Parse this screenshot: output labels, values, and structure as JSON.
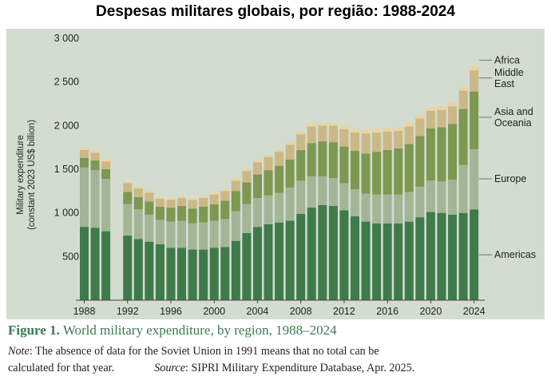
{
  "page_title": "Despesas militares globais, por região: 1988-2024",
  "caption": {
    "figure_label": "Figure 1.",
    "figure_title": "World military expenditure, by region, 1988–2024"
  },
  "note": {
    "label": "Note",
    "text_line1": ": The absence of data for the Soviet Union in 1991 means that no total can be",
    "text_line2": "calculated for that year.",
    "source_label": "Source",
    "source_text": ": SIPRI Military Expenditure Database, Apr. 2025."
  },
  "colors": {
    "panel_bg": "#d3dccf",
    "Americas": "#3f7a4b",
    "Europe": "#a3b596",
    "Asia and Oceania": "#7d9850",
    "Middle East": "#cbb886",
    "Africa": "#ecd39a"
  },
  "chart_data": {
    "type": "stacked_bar",
    "title": "",
    "ylabel_line1": "Military expenditure",
    "ylabel_line2": "(constant 2023 US$ billion)",
    "xlabel": "",
    "ylim": [
      0,
      3000
    ],
    "yticks": [
      500,
      1000,
      1500,
      2000,
      2500,
      3000
    ],
    "ytick_labels": [
      "500",
      "1 000",
      "1 500",
      "2 000",
      "2 500",
      "3 000"
    ],
    "xtick_labels": [
      "1988",
      "1992",
      "1996",
      "2000",
      "2004",
      "2008",
      "2012",
      "2016",
      "2020",
      "2024"
    ],
    "grid": false,
    "legend_position": "right",
    "categories": [
      1988,
      1989,
      1990,
      1991,
      1992,
      1993,
      1994,
      1995,
      1996,
      1997,
      1998,
      1999,
      2000,
      2001,
      2002,
      2003,
      2004,
      2005,
      2006,
      2007,
      2008,
      2009,
      2010,
      2011,
      2012,
      2013,
      2014,
      2015,
      2016,
      2017,
      2018,
      2019,
      2020,
      2021,
      2022,
      2023,
      2024
    ],
    "series": [
      {
        "name": "Americas",
        "values": [
          840,
          830,
          790,
          null,
          740,
          700,
          670,
          640,
          600,
          600,
          580,
          580,
          600,
          610,
          680,
          770,
          840,
          870,
          890,
          910,
          990,
          1060,
          1090,
          1080,
          1030,
          960,
          900,
          880,
          880,
          880,
          900,
          950,
          1010,
          1000,
          980,
          1000,
          1040
        ]
      },
      {
        "name": "Europe",
        "values": [
          680,
          660,
          600,
          null,
          360,
          340,
          310,
          280,
          300,
          310,
          300,
          310,
          310,
          320,
          340,
          330,
          330,
          330,
          340,
          380,
          380,
          360,
          330,
          320,
          310,
          310,
          320,
          330,
          330,
          330,
          340,
          350,
          360,
          360,
          400,
          550,
          690
        ]
      },
      {
        "name": "Asia and Oceania",
        "values": [
          110,
          110,
          110,
          null,
          140,
          140,
          150,
          150,
          160,
          170,
          170,
          180,
          190,
          210,
          230,
          250,
          270,
          290,
          310,
          320,
          350,
          380,
          400,
          410,
          420,
          440,
          460,
          490,
          510,
          530,
          550,
          580,
          600,
          620,
          640,
          640,
          660
        ]
      },
      {
        "name": "Middle East",
        "values": [
          90,
          90,
          90,
          null,
          100,
          100,
          100,
          90,
          90,
          90,
          100,
          100,
          110,
          110,
          120,
          130,
          140,
          150,
          160,
          170,
          180,
          190,
          180,
          190,
          200,
          210,
          230,
          220,
          210,
          200,
          200,
          200,
          200,
          200,
          200,
          210,
          240
        ]
      },
      {
        "name": "Africa",
        "values": [
          20,
          20,
          20,
          null,
          20,
          20,
          20,
          20,
          20,
          20,
          20,
          20,
          20,
          20,
          20,
          20,
          20,
          20,
          20,
          30,
          30,
          30,
          30,
          30,
          30,
          40,
          40,
          40,
          40,
          40,
          40,
          40,
          40,
          40,
          40,
          40,
          50
        ]
      }
    ],
    "legend_labels": [
      {
        "series": "Africa",
        "lines": [
          "Africa"
        ]
      },
      {
        "series": "Middle East",
        "lines": [
          "Middle",
          "East"
        ]
      },
      {
        "series": "Asia and Oceania",
        "lines": [
          "Asia and",
          "Oceania"
        ]
      },
      {
        "series": "Europe",
        "lines": [
          "Europe"
        ]
      },
      {
        "series": "Americas",
        "lines": [
          "Americas"
        ]
      }
    ]
  }
}
